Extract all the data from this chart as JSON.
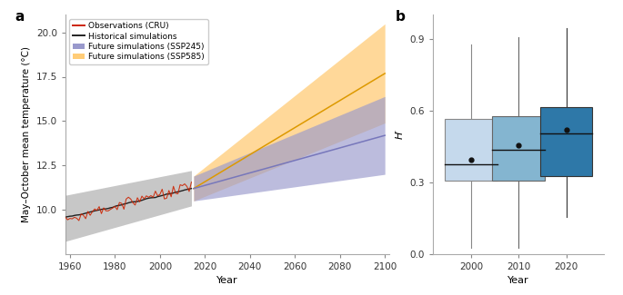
{
  "panel_a": {
    "xlim": [
      1958,
      2102
    ],
    "ylim": [
      7.5,
      21.0
    ],
    "yticks": [
      10.0,
      12.5,
      15.0,
      17.5,
      20.0
    ],
    "xticks": [
      1960,
      1980,
      2000,
      2020,
      2040,
      2060,
      2080,
      2100
    ],
    "xlabel": "Year",
    "ylabel": "May–October mean temperature (°C)",
    "obs_color": "#cc2200",
    "hist_color": "#222222",
    "hist_fill": "#999999",
    "ssp245_color": "#7777bb",
    "ssp245_fill": "#9999cc",
    "ssp585_color": "#dd9900",
    "ssp585_fill": "#ffcc77",
    "legend_fontsize": 6.5
  },
  "panel_b": {
    "xlabel": "Year",
    "ylabel": "H′",
    "xticks": [
      2000,
      2010,
      2020
    ],
    "yticks": [
      0,
      0.3,
      0.6,
      0.9
    ],
    "ylim": [
      0,
      1.0
    ],
    "xlim": [
      1992,
      2028
    ],
    "boxes": [
      {
        "year": 2000,
        "median": 0.375,
        "q1": 0.305,
        "q3": 0.565,
        "whisker_low": 0.025,
        "whisker_high": 0.875,
        "mean": 0.395,
        "color": "#c5d9ec",
        "edge_color": "#888888"
      },
      {
        "year": 2010,
        "median": 0.435,
        "q1": 0.305,
        "q3": 0.575,
        "whisker_low": 0.025,
        "whisker_high": 0.905,
        "mean": 0.455,
        "color": "#84b5d0",
        "edge_color": "#666666"
      },
      {
        "year": 2020,
        "median": 0.505,
        "q1": 0.325,
        "q3": 0.615,
        "whisker_low": 0.155,
        "whisker_high": 0.945,
        "mean": 0.52,
        "color": "#2e78a8",
        "edge_color": "#333333"
      }
    ]
  }
}
